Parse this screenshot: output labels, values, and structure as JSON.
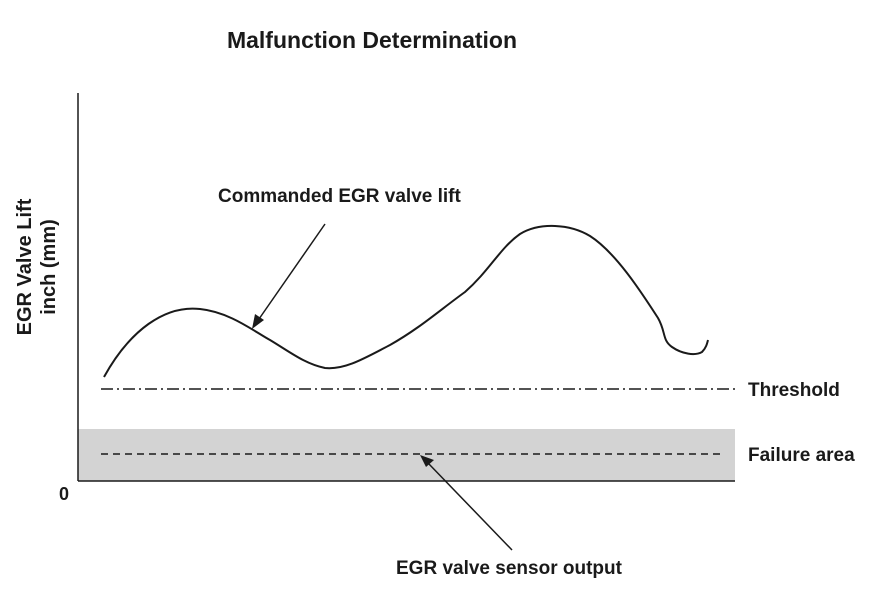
{
  "title": "Malfunction Determination",
  "y_axis": {
    "label_line1": "EGR Valve Lift",
    "label_line2": "inch (mm)",
    "origin_label": "0"
  },
  "labels": {
    "commanded": "Commanded EGR valve lift",
    "threshold": "Threshold",
    "failure_area": "Failure area",
    "sensor_output": "EGR valve sensor output"
  },
  "colors": {
    "failure_fill": "#d3d3d3",
    "ink": "#1a1a1a"
  }
}
